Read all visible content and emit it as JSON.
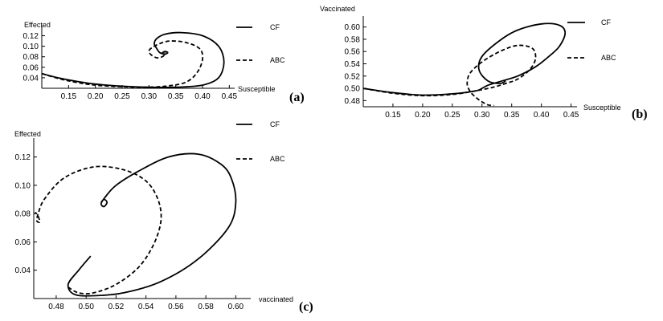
{
  "chart_data": [
    {
      "type": "line",
      "panel_label": "(a)",
      "xlabel": "Susceptible",
      "ylabel": "Effected",
      "xticks": [
        0.15,
        0.2,
        0.25,
        0.3,
        0.35,
        0.4,
        0.45
      ],
      "yticks": [
        0.04,
        0.06,
        0.08,
        0.1,
        0.12
      ],
      "xlim": [
        0.1,
        0.46
      ],
      "ylim": [
        0.02,
        0.13
      ],
      "legend_placement": "right",
      "series": [
        {
          "name": "CF",
          "style": "solid",
          "x": [
            0.1,
            0.13,
            0.16,
            0.2,
            0.25,
            0.3,
            0.35,
            0.4,
            0.43,
            0.44,
            0.43,
            0.4,
            0.36,
            0.33,
            0.315,
            0.31,
            0.315,
            0.32,
            0.33,
            0.335,
            0.33,
            0.325,
            0.33
          ],
          "y": [
            0.048,
            0.04,
            0.034,
            0.028,
            0.024,
            0.022,
            0.022,
            0.026,
            0.04,
            0.07,
            0.1,
            0.12,
            0.126,
            0.123,
            0.115,
            0.105,
            0.095,
            0.088,
            0.085,
            0.088,
            0.09,
            0.087,
            0.084
          ]
        },
        {
          "name": "ABC",
          "style": "dashed",
          "x": [
            0.1,
            0.13,
            0.16,
            0.2,
            0.25,
            0.3,
            0.34,
            0.37,
            0.39,
            0.4,
            0.395,
            0.37,
            0.34,
            0.32,
            0.305,
            0.3,
            0.305,
            0.315,
            0.325,
            0.33,
            0.33
          ],
          "y": [
            0.048,
            0.039,
            0.032,
            0.026,
            0.023,
            0.022,
            0.025,
            0.032,
            0.05,
            0.075,
            0.095,
            0.107,
            0.11,
            0.105,
            0.097,
            0.09,
            0.083,
            0.078,
            0.08,
            0.085,
            0.088
          ]
        }
      ]
    },
    {
      "type": "line",
      "panel_label": "(b)",
      "xlabel": "Susceptible",
      "ylabel": "Vaccinated",
      "xticks": [
        0.15,
        0.2,
        0.25,
        0.3,
        0.35,
        0.4,
        0.45
      ],
      "yticks": [
        0.48,
        0.5,
        0.52,
        0.54,
        0.56,
        0.58,
        0.6
      ],
      "xlim": [
        0.1,
        0.46
      ],
      "ylim": [
        0.47,
        0.61
      ],
      "legend_placement": "right",
      "series": [
        {
          "name": "CF",
          "style": "solid",
          "x": [
            0.1,
            0.15,
            0.2,
            0.25,
            0.29,
            0.3,
            0.31,
            0.33,
            0.36,
            0.39,
            0.41,
            0.43,
            0.44,
            0.43,
            0.4,
            0.36,
            0.33,
            0.3,
            0.295,
            0.31,
            0.33,
            0.34
          ],
          "y": [
            0.5,
            0.493,
            0.489,
            0.491,
            0.496,
            0.5,
            0.505,
            0.511,
            0.52,
            0.535,
            0.55,
            0.568,
            0.59,
            0.603,
            0.605,
            0.595,
            0.578,
            0.552,
            0.53,
            0.512,
            0.508,
            0.512
          ]
        },
        {
          "name": "ABC",
          "style": "dashed",
          "x": [
            0.1,
            0.15,
            0.2,
            0.25,
            0.29,
            0.32,
            0.34,
            0.36,
            0.38,
            0.39,
            0.385,
            0.36,
            0.33,
            0.3,
            0.28,
            0.275,
            0.28,
            0.29,
            0.3,
            0.31,
            0.32
          ],
          "y": [
            0.5,
            0.492,
            0.488,
            0.49,
            0.496,
            0.502,
            0.508,
            0.515,
            0.53,
            0.548,
            0.565,
            0.57,
            0.56,
            0.543,
            0.525,
            0.508,
            0.495,
            0.485,
            0.478,
            0.473,
            0.472
          ]
        }
      ]
    },
    {
      "type": "line",
      "panel_label": "(c)",
      "xlabel": "vaccinated",
      "ylabel": "Effected",
      "xticks": [
        0.48,
        0.5,
        0.52,
        0.54,
        0.56,
        0.58,
        0.6
      ],
      "yticks": [
        0.04,
        0.06,
        0.08,
        0.1,
        0.12
      ],
      "xlim": [
        0.465,
        0.61
      ],
      "ylim": [
        0.02,
        0.13
      ],
      "legend_placement": "top-right",
      "series": [
        {
          "name": "CF",
          "style": "solid",
          "x": [
            0.503,
            0.495,
            0.488,
            0.492,
            0.505,
            0.525,
            0.55,
            0.575,
            0.595,
            0.6,
            0.597,
            0.59,
            0.575,
            0.555,
            0.535,
            0.52,
            0.513,
            0.51,
            0.512,
            0.514,
            0.512,
            0.51
          ],
          "y": [
            0.05,
            0.04,
            0.03,
            0.023,
            0.022,
            0.024,
            0.032,
            0.048,
            0.07,
            0.088,
            0.105,
            0.115,
            0.122,
            0.12,
            0.11,
            0.1,
            0.092,
            0.087,
            0.085,
            0.088,
            0.09,
            0.088
          ]
        },
        {
          "name": "ABC",
          "style": "dashed",
          "x": [
            0.488,
            0.495,
            0.505,
            0.52,
            0.535,
            0.545,
            0.55,
            0.548,
            0.54,
            0.525,
            0.505,
            0.485,
            0.472,
            0.468,
            0.467,
            0.469,
            0.468,
            0.466
          ],
          "y": [
            0.028,
            0.024,
            0.024,
            0.03,
            0.042,
            0.058,
            0.075,
            0.09,
            0.103,
            0.111,
            0.113,
            0.105,
            0.09,
            0.08,
            0.075,
            0.074,
            0.078,
            0.081
          ]
        }
      ]
    }
  ]
}
